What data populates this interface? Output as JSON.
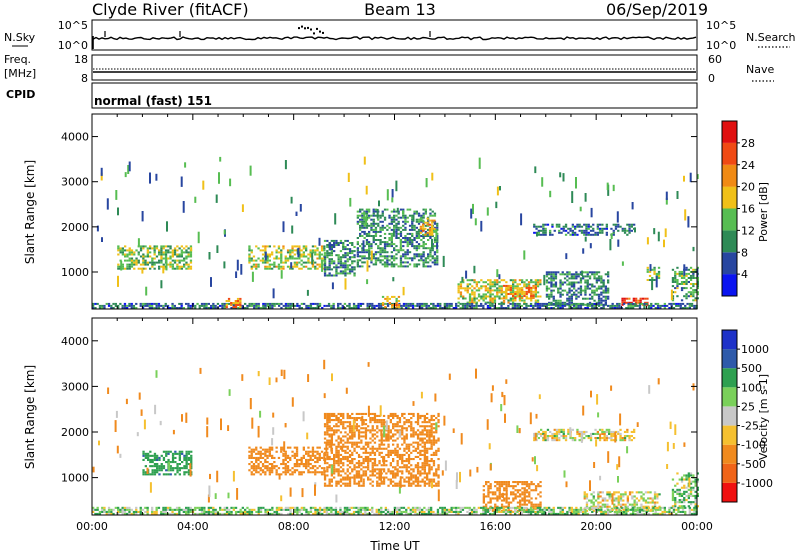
{
  "header": {
    "station": "Clyde River (fitACF)",
    "beam": "Beam 13",
    "date": "06/Sep/2019"
  },
  "noise_panel": {
    "left_label": "N.Sky",
    "left_ticks": [
      "10^5",
      "10^0"
    ],
    "right_ticks": [
      "10^5",
      "10^0"
    ],
    "right_label": "N.Search"
  },
  "freq_panel": {
    "left_label_1": "Freq.",
    "left_label_2": "[MHz]",
    "left_ticks": [
      "18",
      "8"
    ],
    "right_ticks": [
      "60",
      "0"
    ],
    "right_label": "Nave"
  },
  "cpid": {
    "label": "CPID",
    "value": "normal (fast) 151"
  },
  "colors": {
    "power_scale": [
      "#0a14f0",
      "#2846a0",
      "#2e8a56",
      "#57bd52",
      "#f0c018",
      "#f08a14",
      "#f04a14",
      "#e01010"
    ],
    "velocity_scale": [
      "#f01010",
      "#f06418",
      "#f08a1e",
      "#f5c030",
      "#c8c8c8",
      "#7ad05a",
      "#2ea050",
      "#2e5aaa",
      "#1e32c8"
    ]
  },
  "chart_data": [
    {
      "type": "heatmap",
      "name": "power",
      "xlabel": "",
      "ylabel": "Slant Range [km]",
      "x_range_hours": [
        0,
        24
      ],
      "ylim": [
        180,
        4500
      ],
      "y_ticks": [
        "1000",
        "2000",
        "3000",
        "4000"
      ],
      "colorbar": {
        "label": "Power [dB]",
        "ticks": [
          "4",
          "8",
          "12",
          "16",
          "20",
          "24",
          "28"
        ],
        "range": [
          0,
          32
        ]
      },
      "patches": [
        {
          "t0": 1.0,
          "t1": 3.9,
          "r0": 1050,
          "r1": 1550,
          "value": 14
        },
        {
          "t0": 6.2,
          "t1": 9.2,
          "r0": 1050,
          "r1": 1550,
          "value": 16
        },
        {
          "t0": 9.2,
          "t1": 10.4,
          "r0": 900,
          "r1": 1700,
          "value": 10
        },
        {
          "t0": 10.5,
          "t1": 13.7,
          "r0": 1100,
          "r1": 2400,
          "value": 10
        },
        {
          "t0": 13.0,
          "t1": 13.6,
          "r0": 1800,
          "r1": 2200,
          "value": 20
        },
        {
          "t0": 14.5,
          "t1": 17.8,
          "r0": 300,
          "r1": 800,
          "value": 16
        },
        {
          "t0": 16.3,
          "t1": 17.6,
          "r0": 400,
          "r1": 700,
          "value": 22
        },
        {
          "t0": 17.5,
          "t1": 21.5,
          "r0": 1800,
          "r1": 2050,
          "value": 8
        },
        {
          "t0": 18.0,
          "t1": 20.5,
          "r0": 250,
          "r1": 1000,
          "value": 10
        },
        {
          "t0": 21.0,
          "t1": 22.0,
          "r0": 250,
          "r1": 400,
          "value": 26
        },
        {
          "t0": 22.0,
          "t1": 22.5,
          "r0": 800,
          "r1": 1100,
          "value": 14
        },
        {
          "t0": 23.0,
          "t1": 24.0,
          "r0": 350,
          "r1": 1100,
          "value": 12
        },
        {
          "t0": 0.0,
          "t1": 24.0,
          "r0": 180,
          "r1": 300,
          "value": 8
        },
        {
          "t0": 5.3,
          "t1": 5.9,
          "r0": 200,
          "r1": 400,
          "value": 22
        },
        {
          "t0": 11.5,
          "t1": 12.2,
          "r0": 200,
          "r1": 450,
          "value": 20
        }
      ]
    },
    {
      "type": "heatmap",
      "name": "velocity",
      "xlabel": "Time UT",
      "ylabel": "Slant Range [km]",
      "x_range_hours": [
        0,
        24
      ],
      "x_ticks": [
        "00:00",
        "04:00",
        "08:00",
        "12:00",
        "16:00",
        "20:00",
        "00:00"
      ],
      "ylim": [
        180,
        4500
      ],
      "y_ticks": [
        "1000",
        "2000",
        "3000",
        "4000"
      ],
      "colorbar": {
        "label": "Velocity [m s-1]",
        "ticks": [
          "1000",
          "500",
          "100",
          "25",
          "-25",
          "-100",
          "-500",
          "-1000"
        ]
      },
      "patches": [
        {
          "t0": 2.0,
          "t1": 3.9,
          "r0": 1050,
          "r1": 1550,
          "value": 400
        },
        {
          "t0": 6.2,
          "t1": 9.2,
          "r0": 1050,
          "r1": 1650,
          "value": -300
        },
        {
          "t0": 9.2,
          "t1": 13.7,
          "r0": 800,
          "r1": 2400,
          "value": -300
        },
        {
          "t0": 15.5,
          "t1": 17.8,
          "r0": 250,
          "r1": 900,
          "value": -300
        },
        {
          "t0": 17.5,
          "t1": 21.5,
          "r0": 1800,
          "r1": 2050,
          "value": 0
        },
        {
          "t0": 19.5,
          "t1": 22.5,
          "r0": 250,
          "r1": 700,
          "value": 0
        },
        {
          "t0": 23.0,
          "t1": 24.0,
          "r0": 350,
          "r1": 1100,
          "value": 60
        },
        {
          "t0": 0.0,
          "t1": 24.0,
          "r0": 180,
          "r1": 350,
          "value": 60
        }
      ]
    }
  ]
}
